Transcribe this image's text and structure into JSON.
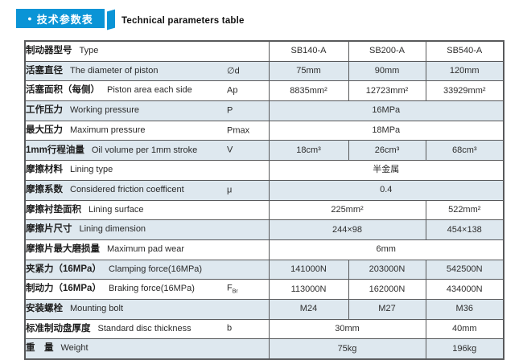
{
  "colors": {
    "accent": "#0a94d6",
    "row_shaded": "#dee8ef",
    "border": "#58595b",
    "text": "#2e2e2e"
  },
  "header": {
    "bullet": "●",
    "title_zh": "技术参数表",
    "title_en": "Technical parameters table"
  },
  "table": {
    "model_header": {
      "zh": "制动器型号",
      "en": "Type"
    },
    "models": [
      "SB140-A",
      "SB200-A",
      "SB540-A"
    ],
    "rows": [
      {
        "zh": "活塞直径",
        "en": "The diameter of piston",
        "symbol": "∅d",
        "cells": [
          {
            "text": "75mm"
          },
          {
            "text": "90mm"
          },
          {
            "text": "120mm"
          }
        ]
      },
      {
        "zh": "活塞面积（每侧）",
        "en": "Piston area each side",
        "symbol": "Ap",
        "cells": [
          {
            "text": "8835mm²"
          },
          {
            "text": "12723mm²"
          },
          {
            "text": "33929mm²"
          }
        ]
      },
      {
        "zh": "工作压力",
        "en": "Working pressure",
        "symbol": "P",
        "cells": [
          {
            "text": "16MPa",
            "span": 3
          }
        ]
      },
      {
        "zh": "最大压力",
        "en": "Maximum pressure",
        "symbol": "Pmax",
        "cells": [
          {
            "text": "18MPa",
            "span": 3
          }
        ]
      },
      {
        "zh": "1mm行程油量",
        "en": "Oil volume per 1mm stroke",
        "symbol": "V",
        "cells": [
          {
            "text": "18cm³"
          },
          {
            "text": "26cm³"
          },
          {
            "text": "68cm³"
          }
        ]
      },
      {
        "zh": "摩擦材料",
        "en": "Lining type",
        "symbol": "",
        "cells": [
          {
            "text": "半金属",
            "span": 3
          }
        ]
      },
      {
        "zh": "摩擦系数",
        "en": "Considered friction coefficent",
        "symbol": "μ",
        "cells": [
          {
            "text": "0.4",
            "span": 3
          }
        ]
      },
      {
        "zh": "摩擦衬垫面积",
        "en": "Lining surface",
        "symbol": "",
        "cells": [
          {
            "text": "225mm²",
            "span": 2
          },
          {
            "text": "522mm²"
          }
        ]
      },
      {
        "zh": "摩擦片尺寸",
        "en": "Lining dimension",
        "symbol": "",
        "cells": [
          {
            "text": "244×98",
            "span": 2
          },
          {
            "text": "454×138"
          }
        ]
      },
      {
        "zh": "摩擦片最大磨损量",
        "en": "Maximum pad wear",
        "symbol": "",
        "cells": [
          {
            "text": "6mm",
            "span": 3
          }
        ]
      },
      {
        "zh": "夹紧力（16MPa）",
        "en": "Clamping force(16MPa)",
        "symbol": "",
        "cells": [
          {
            "text": "141000N"
          },
          {
            "text": "203000N"
          },
          {
            "text": "542500N"
          }
        ]
      },
      {
        "zh": "制动力（16MPa）",
        "en": "Braking force(16MPa)",
        "symbol": "F_Br",
        "cells": [
          {
            "text": "113000N"
          },
          {
            "text": "162000N"
          },
          {
            "text": "434000N"
          }
        ]
      },
      {
        "zh": "安装螺栓",
        "en": "Mounting bolt",
        "symbol": "",
        "cells": [
          {
            "text": "M24"
          },
          {
            "text": "M27"
          },
          {
            "text": "M36"
          }
        ]
      },
      {
        "zh": "标准制动盘厚度",
        "en": "Standard disc thickness",
        "symbol": "b",
        "cells": [
          {
            "text": "30mm",
            "span": 2
          },
          {
            "text": "40mm"
          }
        ]
      },
      {
        "zh": "重　量",
        "en": "Weight",
        "symbol": "",
        "cells": [
          {
            "text": "75kg",
            "span": 2
          },
          {
            "text": "196kg"
          }
        ]
      }
    ]
  }
}
